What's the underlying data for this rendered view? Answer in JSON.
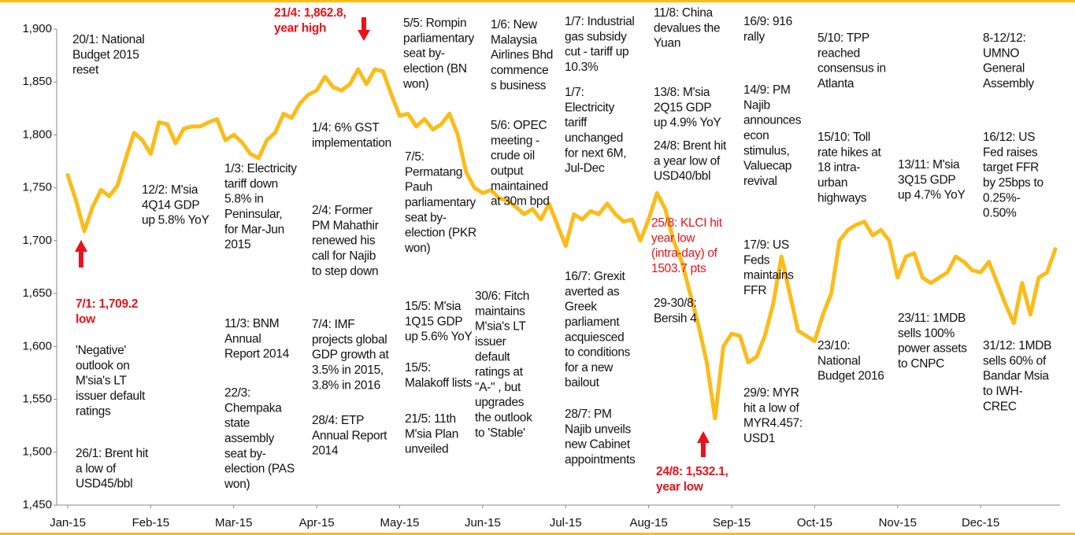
{
  "chart_data": {
    "type": "line",
    "categories": [
      "Jan-15",
      null,
      null,
      null,
      null,
      null,
      null,
      null,
      null,
      null,
      "Feb-15",
      null,
      null,
      null,
      null,
      null,
      null,
      null,
      null,
      null,
      "Mar-15",
      null,
      null,
      null,
      null,
      null,
      null,
      null,
      null,
      null,
      "Apr-15",
      null,
      null,
      null,
      null,
      null,
      null,
      null,
      null,
      null,
      "May-15",
      null,
      null,
      null,
      null,
      null,
      null,
      null,
      null,
      null,
      "Jun-15",
      null,
      null,
      null,
      null,
      null,
      null,
      null,
      null,
      null,
      "Jul-15",
      null,
      null,
      null,
      null,
      null,
      null,
      null,
      null,
      null,
      "Aug-15",
      null,
      null,
      null,
      null,
      null,
      null,
      null,
      null,
      null,
      "Sep-15",
      null,
      null,
      null,
      null,
      null,
      null,
      null,
      null,
      null,
      "Oct-15",
      null,
      null,
      null,
      null,
      null,
      null,
      null,
      null,
      null,
      "Nov-15",
      null,
      null,
      null,
      null,
      null,
      null,
      null,
      null,
      null,
      "Dec-15",
      null,
      null,
      null,
      null,
      null,
      null,
      null,
      null,
      null
    ],
    "series": [
      {
        "color": "#fbbc1a",
        "values": [
          1762,
          1738,
          1709,
          1732,
          1748,
          1742,
          1752,
          1778,
          1802,
          1795,
          1782,
          1812,
          1810,
          1792,
          1806,
          1808,
          1808,
          1812,
          1815,
          1795,
          1800,
          1793,
          1782,
          1778,
          1795,
          1802,
          1820,
          1816,
          1830,
          1838,
          1842,
          1855,
          1845,
          1842,
          1848,
          1862,
          1848,
          1862,
          1860,
          1838,
          1818,
          1820,
          1808,
          1815,
          1805,
          1810,
          1820,
          1800,
          1765,
          1750,
          1745,
          1748,
          1740,
          1738,
          1732,
          1725,
          1730,
          1720,
          1735,
          1715,
          1695,
          1725,
          1720,
          1728,
          1725,
          1735,
          1725,
          1718,
          1720,
          1700,
          1720,
          1745,
          1730,
          1700,
          1680,
          1650,
          1620,
          1585,
          1532,
          1600,
          1612,
          1610,
          1585,
          1590,
          1610,
          1640,
          1685,
          1650,
          1615,
          1610,
          1605,
          1630,
          1650,
          1700,
          1710,
          1715,
          1718,
          1705,
          1710,
          1700,
          1665,
          1685,
          1688,
          1665,
          1660,
          1665,
          1670,
          1685,
          1680,
          1672,
          1670,
          1680,
          1660,
          1640,
          1622,
          1660,
          1630,
          1665,
          1670,
          1692
        ]
      }
    ],
    "ylim": [
      1450,
      1900
    ],
    "yticks": [
      {
        "value": 1450,
        "label": "1,450"
      },
      {
        "value": 1500,
        "label": "1,500"
      },
      {
        "value": 1550,
        "label": "1,550"
      },
      {
        "value": 1600,
        "label": "1,600"
      },
      {
        "value": 1650,
        "label": "1,650"
      },
      {
        "value": 1700,
        "label": "1,700"
      },
      {
        "value": 1750,
        "label": "1,750"
      },
      {
        "value": 1800,
        "label": "1,800"
      },
      {
        "value": 1850,
        "label": "1,850"
      },
      {
        "value": 1900,
        "label": "1,900"
      }
    ],
    "annotations": [
      {
        "lines": [
          "20/1: National",
          "Budget 2015",
          "reset"
        ]
      },
      {
        "lines": [
          "12/2: M'sia",
          "4Q14 GDP",
          "up 5.8% YoY"
        ]
      },
      {
        "lines": [
          "7/1: 1,709.2",
          "low"
        ],
        "color": "#e8131b"
      },
      {
        "lines": [
          "'Negative'",
          "outlook on",
          "M'sia's LT",
          "issuer default",
          "ratings"
        ]
      },
      {
        "lines": [
          "26/1: Brent hit",
          "a low of",
          "USD45/bbl"
        ]
      },
      {
        "lines": [
          "1/3: Electricity",
          "tariff down",
          "5.8% in",
          "Peninsular,",
          "for Mar-Jun",
          "2015"
        ]
      },
      {
        "lines": [
          "11/3: BNM",
          "Annual",
          "Report 2014"
        ]
      },
      {
        "lines": [
          "22/3:",
          "Chempaka",
          "state",
          "assembly",
          "seat by-",
          "election (PAS",
          "won)"
        ]
      },
      {
        "lines": [
          "21/4: 1,862.8,",
          "year high"
        ],
        "color": "#e8131b"
      },
      {
        "lines": [
          "1/4: 6% GST",
          "implementation"
        ]
      },
      {
        "lines": [
          "2/4: Former",
          "PM Mahathir",
          "renewed his",
          "call for Najib",
          "to step down"
        ]
      },
      {
        "lines": [
          "7/4: IMF",
          "projects global",
          "GDP growth at",
          "3.5% in 2015,",
          "3.8% in 2016"
        ]
      },
      {
        "lines": [
          "28/4: ETP",
          "Annual Report",
          "2014"
        ]
      },
      {
        "lines": [
          "5/5: Rompin",
          "parliamentary",
          "seat by-",
          "election (BN",
          "won)"
        ]
      },
      {
        "lines": [
          "7/5:",
          "Permatang",
          "Pauh",
          "parliamentary",
          "seat by-",
          "election (PKR",
          "won)"
        ]
      },
      {
        "lines": [
          "15/5: M'sia",
          "1Q15 GDP",
          "up 5.6% YoY"
        ]
      },
      {
        "lines": [
          "15/5:",
          "Malakoff lists"
        ]
      },
      {
        "lines": [
          "21/5: 11th",
          "M'sia Plan",
          "unveiled"
        ]
      },
      {
        "lines": [
          "1/6: New",
          "Malaysia",
          "Airlines Bhd",
          "commence",
          "s business"
        ]
      },
      {
        "lines": [
          "5/6: OPEC",
          "meeting -",
          "crude oil",
          "output",
          "maintained",
          "at 30m bpd"
        ]
      },
      {
        "lines": [
          "30/6: Fitch",
          "maintains",
          "M'sia's LT",
          "issuer",
          "default",
          "ratings at",
          "\"A-\" , but",
          "upgrades",
          "the outlook",
          "to 'Stable'"
        ]
      },
      {
        "lines": [
          "1/7: Industrial",
          "gas subsidy",
          "cut - tariff up",
          "10.3%"
        ]
      },
      {
        "lines": [
          "1/7:",
          "Electricity",
          "tariff",
          "unchanged",
          "for next 6M,",
          "Jul-Dec"
        ]
      },
      {
        "lines": [
          "16/7: Grexit",
          "averted as",
          "Greek",
          "parliament",
          "acquiesced",
          "to conditions",
          "for a new",
          "bailout"
        ]
      },
      {
        "lines": [
          "28/7: PM",
          "Najib unveils",
          "new Cabinet",
          "appointments"
        ]
      },
      {
        "lines": [
          "11/8: China",
          "devalues the",
          "Yuan"
        ]
      },
      {
        "lines": [
          "13/8: M'sia",
          "2Q15 GDP",
          "up 4.9% YoY"
        ]
      },
      {
        "lines": [
          "24/8: Brent hit",
          "a year low of",
          "USD40/bbl"
        ]
      },
      {
        "lines": [
          "25/8: KLCI hit",
          "year low",
          "(intra-day) of",
          "1503.7 pts"
        ],
        "color": "#e8131b"
      },
      {
        "lines": [
          "29-30/8:",
          "Bersih 4"
        ]
      },
      {
        "lines": [
          "24/8: 1,532.1,",
          "year low"
        ],
        "color": "#e8131b"
      },
      {
        "lines": [
          "16/9: 916",
          "rally"
        ]
      },
      {
        "lines": [
          "14/9: PM",
          "Najib",
          "announces",
          "econ",
          "stimulus,",
          "Valuecap",
          "revival"
        ]
      },
      {
        "lines": [
          "17/9: US",
          "Feds",
          "maintains",
          "FFR"
        ]
      },
      {
        "lines": [
          "29/9: MYR",
          "hit a low of",
          "MYR4.457:",
          "USD1"
        ]
      },
      {
        "lines": [
          "5/10: TPP",
          "reached",
          "consensus in",
          "Atlanta"
        ]
      },
      {
        "lines": [
          "15/10: Toll",
          "rate hikes at",
          "18 intra-",
          "urban",
          "highways"
        ]
      },
      {
        "lines": [
          "23/10:",
          "National",
          "Budget 2016"
        ]
      },
      {
        "lines": [
          "13/11: M'sia",
          "3Q15 GDP",
          "up 4.7% YoY"
        ]
      },
      {
        "lines": [
          "23/11: 1MDB",
          "sells 100%",
          "power assets",
          "to CNPC"
        ]
      },
      {
        "lines": [
          "8-12/12:",
          "UMNO",
          "General",
          "Assembly"
        ]
      },
      {
        "lines": [
          "16/12: US",
          "Fed raises",
          "target FFR",
          "by 25bps to",
          "0.25%-",
          "0.50%"
        ]
      },
      {
        "lines": [
          "31/12: 1MDB",
          "sells 60% of",
          "Bandar Msia",
          "to IWH-",
          "CREC"
        ]
      }
    ]
  }
}
